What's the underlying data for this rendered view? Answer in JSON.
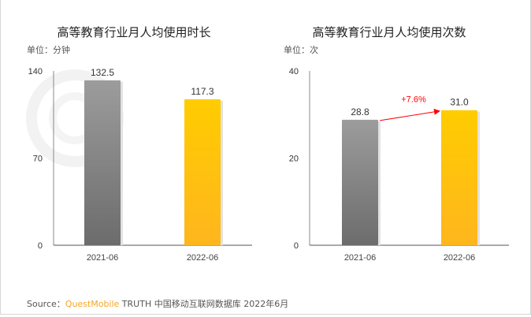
{
  "watermark": "QUESTMOBILE",
  "source": {
    "prefix": "Source：",
    "brand": "QuestMobile",
    "text": " TRUTH 中国移动互联网数据库 2022年6月"
  },
  "colors": {
    "bar_2021": "#8a8a8a",
    "bar_2022": "#ffc300",
    "arrow": "#ff0000",
    "brand": "#f5a623"
  },
  "chart_data": [
    {
      "type": "bar",
      "title": "高等教育行业月人均使用时长",
      "unit": "单位：分钟",
      "categories": [
        "2021-06",
        "2022-06"
      ],
      "values": [
        132.5,
        117.3
      ],
      "value_labels": [
        "132.5",
        "117.3"
      ],
      "yticks": [
        0,
        70,
        140
      ],
      "ylim": [
        0,
        140
      ],
      "grid": false
    },
    {
      "type": "bar",
      "title": "高等教育行业月人均使用次数",
      "unit": "单位：次",
      "categories": [
        "2021-06",
        "2022-06"
      ],
      "values": [
        28.8,
        31.0
      ],
      "value_labels": [
        "28.8",
        "31.0"
      ],
      "yticks": [
        0,
        20,
        40
      ],
      "ylim": [
        0,
        40
      ],
      "grid": false,
      "annotation": "+7.6%"
    }
  ]
}
